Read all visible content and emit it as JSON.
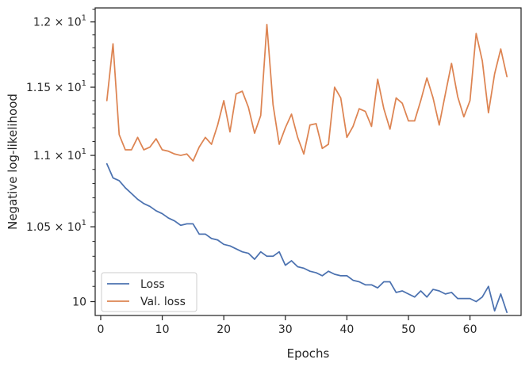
{
  "chart_data": {
    "type": "line",
    "title": "",
    "xlabel": "Epochs",
    "ylabel": "Negative log-likelihood",
    "yscale": "log",
    "xlim": [
      -0.9,
      68.3
    ],
    "ylim": [
      9.91,
      12.11
    ],
    "x_ticks": [
      0,
      10,
      20,
      30,
      40,
      50,
      60
    ],
    "x_tick_labels": [
      "0",
      "10",
      "20",
      "30",
      "40",
      "50",
      "60"
    ],
    "y_ticks": [
      {
        "value": 10.0,
        "mantissa": "10",
        "times": "",
        "exp": ""
      },
      {
        "value": 10.5,
        "mantissa": "1.05",
        "times": "×",
        "exp": "1"
      },
      {
        "value": 11.0,
        "mantissa": "1.1",
        "times": "×",
        "exp": "1"
      },
      {
        "value": 11.5,
        "mantissa": "1.15",
        "times": "×",
        "exp": "1"
      },
      {
        "value": 12.0,
        "mantissa": "1.2",
        "times": "×",
        "exp": "1"
      }
    ],
    "y_tick_base": "10",
    "grid": false,
    "legend_position": "lower-left",
    "x": [
      1,
      2,
      3,
      4,
      5,
      6,
      7,
      8,
      9,
      10,
      11,
      12,
      13,
      14,
      15,
      16,
      17,
      18,
      19,
      20,
      21,
      22,
      23,
      24,
      25,
      26,
      27,
      28,
      29,
      30,
      31,
      32,
      33,
      34,
      35,
      36,
      37,
      38,
      39,
      40,
      41,
      42,
      43,
      44,
      45,
      46,
      47,
      48,
      49,
      50,
      51,
      52,
      53,
      54,
      55,
      56,
      57,
      58,
      59,
      60,
      61,
      62,
      63,
      64,
      65,
      66
    ],
    "series": [
      {
        "name": "Loss",
        "color": "#4c72b0",
        "values": [
          10.94,
          10.84,
          10.82,
          10.77,
          10.73,
          10.69,
          10.66,
          10.64,
          10.61,
          10.59,
          10.56,
          10.54,
          10.51,
          10.52,
          10.52,
          10.45,
          10.45,
          10.42,
          10.41,
          10.38,
          10.37,
          10.35,
          10.33,
          10.32,
          10.28,
          10.33,
          10.3,
          10.3,
          10.33,
          10.24,
          10.27,
          10.23,
          10.22,
          10.2,
          10.19,
          10.17,
          10.2,
          10.18,
          10.17,
          10.17,
          10.14,
          10.13,
          10.11,
          10.11,
          10.09,
          10.13,
          10.13,
          10.06,
          10.07,
          10.05,
          10.03,
          10.07,
          10.03,
          10.08,
          10.07,
          10.05,
          10.06,
          10.02,
          10.02,
          10.02,
          10.0,
          10.03,
          10.1,
          9.94,
          10.05,
          9.93
        ]
      },
      {
        "name": "Val. loss",
        "color": "#dd8452",
        "values": [
          11.4,
          11.83,
          11.15,
          11.04,
          11.04,
          11.13,
          11.04,
          11.06,
          11.12,
          11.04,
          11.03,
          11.01,
          11.0,
          11.01,
          10.96,
          11.06,
          11.13,
          11.08,
          11.22,
          11.4,
          11.17,
          11.45,
          11.47,
          11.35,
          11.16,
          11.29,
          11.98,
          11.37,
          11.08,
          11.2,
          11.3,
          11.13,
          11.01,
          11.22,
          11.23,
          11.05,
          11.08,
          11.5,
          11.42,
          11.13,
          11.21,
          11.34,
          11.32,
          11.21,
          11.56,
          11.34,
          11.19,
          11.42,
          11.38,
          11.25,
          11.25,
          11.4,
          11.57,
          11.42,
          11.22,
          11.45,
          11.68,
          11.43,
          11.28,
          11.4,
          11.91,
          11.7,
          11.31,
          11.6,
          11.79,
          11.58
        ]
      }
    ]
  }
}
